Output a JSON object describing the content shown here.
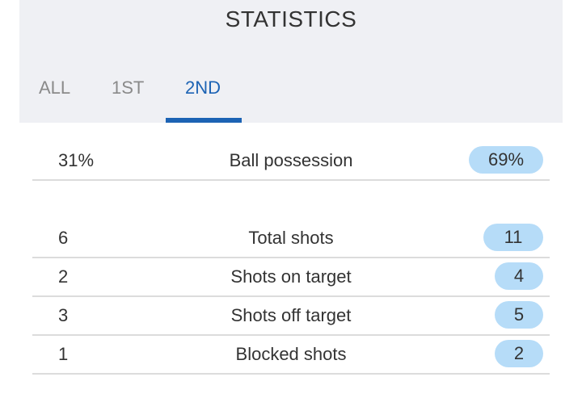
{
  "title": "STATISTICS",
  "tabs": [
    "ALL",
    "1ST",
    "2ND"
  ],
  "active_tab": "2ND",
  "colors": {
    "accent": "#1c63b4",
    "header_bg": "#eff0f4",
    "pill_bg": "#b6dcf8",
    "divider": "#dcdcdc"
  },
  "stats": [
    {
      "label": "Ball possession",
      "left": "31%",
      "right": "69%"
    },
    {
      "label": "Total shots",
      "left": "6",
      "right": "11"
    },
    {
      "label": "Shots on target",
      "left": "2",
      "right": "4"
    },
    {
      "label": "Shots off target",
      "left": "3",
      "right": "5"
    },
    {
      "label": "Blocked shots",
      "left": "1",
      "right": "2"
    }
  ]
}
